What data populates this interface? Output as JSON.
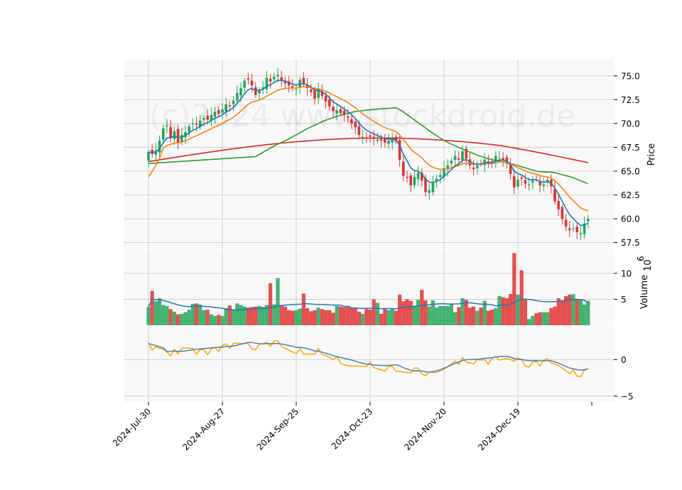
{
  "chart_data": {
    "type": "candlestick",
    "watermark": "(c)2024 www.stockdroid.de",
    "x_tick_labels": [
      "2024-Jul-30",
      "2024-Aug-27",
      "2024-Sep-25",
      "2024-Oct-23",
      "2024-Nov-20",
      "2024-Dec-19"
    ],
    "x_tick_index": [
      0,
      20,
      40,
      60,
      80,
      100
    ],
    "panels": {
      "price": {
        "ylabel": "Price",
        "ylim": [
          56.8,
          76.7
        ],
        "yticks": [
          57.5,
          60.0,
          62.5,
          65.0,
          67.5,
          70.0,
          72.5,
          75.0
        ],
        "ytick_labels": [
          "57.5",
          "60.0",
          "62.5",
          "65.0",
          "67.5",
          "70.0",
          "72.5",
          "75.0"
        ]
      },
      "volume": {
        "ylabel": "Volume",
        "ylabel_exponent": "6",
        "ylim": [
          0,
          14.5
        ],
        "yticks": [
          5,
          10
        ],
        "ytick_labels": [
          "5",
          "10"
        ]
      },
      "oscillator": {
        "ylim": [
          -5.8,
          4.6
        ],
        "yticks": [
          -5,
          0
        ],
        "ytick_labels": [
          "−5",
          "0"
        ]
      }
    },
    "colors": {
      "up": "#26a65b",
      "down": "#e03131",
      "ma_fast": "#1f77b4",
      "ma_medium": "#ff7f0e",
      "ma_slow": "#2ca02c",
      "ma_long": "#d62728",
      "volume_ma": "#1f77b4",
      "osc_a": "#4682b4",
      "osc_b": "#ffa500",
      "panel_bg": "#f8f8f8",
      "grid": "#d0d0d0"
    },
    "ohlc_close": [
      67.0,
      66.8,
      67.2,
      68.2,
      69.5,
      69.8,
      68.5,
      69.2,
      68.0,
      68.8,
      69.1,
      69.7,
      70.0,
      69.9,
      70.3,
      70.6,
      70.4,
      70.9,
      71.2,
      71.0,
      71.5,
      72.0,
      71.8,
      72.4,
      73.2,
      73.7,
      74.5,
      74.6,
      74.0,
      73.0,
      73.5,
      73.8,
      74.8,
      74.4,
      74.9,
      75.1,
      74.5,
      74.2,
      74.0,
      73.8,
      73.6,
      74.6,
      74.2,
      73.7,
      73.3,
      72.6,
      73.6,
      72.9,
      72.3,
      71.8,
      71.3,
      71.4,
      71.1,
      70.9,
      70.6,
      70.0,
      69.6,
      68.8,
      68.6,
      68.5,
      68.6,
      68.4,
      68.3,
      68.2,
      68.0,
      68.2,
      68.4,
      68.1,
      66.2,
      64.5,
      64.3,
      63.5,
      64.4,
      64.8,
      64.0,
      62.8,
      63.0,
      63.8,
      64.2,
      64.6,
      65.3,
      65.6,
      66.1,
      66.6,
      66.2,
      67.1,
      66.3,
      65.6,
      65.2,
      65.6,
      65.8,
      66.2,
      65.8,
      65.9,
      66.6,
      66.4,
      66.2,
      65.8,
      64.7,
      63.3,
      64.1,
      64.2,
      63.7,
      63.6,
      64.0,
      64.1,
      63.5,
      63.6,
      64.1,
      63.4,
      61.8,
      61.0,
      60.0,
      59.2,
      58.8,
      59.0,
      58.6,
      58.5,
      59.5,
      60.0
    ],
    "volume_millions": [
      3.5,
      6.6,
      4.6,
      5.2,
      3.9,
      3.7,
      3.1,
      2.6,
      2.1,
      2.2,
      2.5,
      3.0,
      4.1,
      4.2,
      4.0,
      2.9,
      3.0,
      2.1,
      1.8,
      2.0,
      1.8,
      3.3,
      3.8,
      3.0,
      4.2,
      3.9,
      3.6,
      3.4,
      3.5,
      3.6,
      3.7,
      3.5,
      3.9,
      8.1,
      4.0,
      9.1,
      3.9,
      3.6,
      2.9,
      2.8,
      2.9,
      3.2,
      6.1,
      3.3,
      2.7,
      2.9,
      3.4,
      3.1,
      2.9,
      2.9,
      2.4,
      3.7,
      3.6,
      3.5,
      3.7,
      3.3,
      3.4,
      2.6,
      2.2,
      3.1,
      3.0,
      5.0,
      4.3,
      2.2,
      3.2,
      2.9,
      3.1,
      2.8,
      5.9,
      4.6,
      5.0,
      4.7,
      3.8,
      4.9,
      6.8,
      4.8,
      3.6,
      4.8,
      3.4,
      3.7,
      3.7,
      3.7,
      4.1,
      2.5,
      3.5,
      5.2,
      4.9,
      3.4,
      3.6,
      2.8,
      3.4,
      4.7,
      2.8,
      3.0,
      3.3,
      5.6,
      5.4,
      5.2,
      6.0,
      13.9,
      5.9,
      10.6,
      4.9,
      1.2,
      1.8,
      2.3,
      2.5,
      2.5,
      2.5,
      3.3,
      3.6,
      5.2,
      4.8,
      5.6,
      5.9,
      6.0,
      5.1,
      4.9,
      4.0,
      4.7
    ]
  }
}
